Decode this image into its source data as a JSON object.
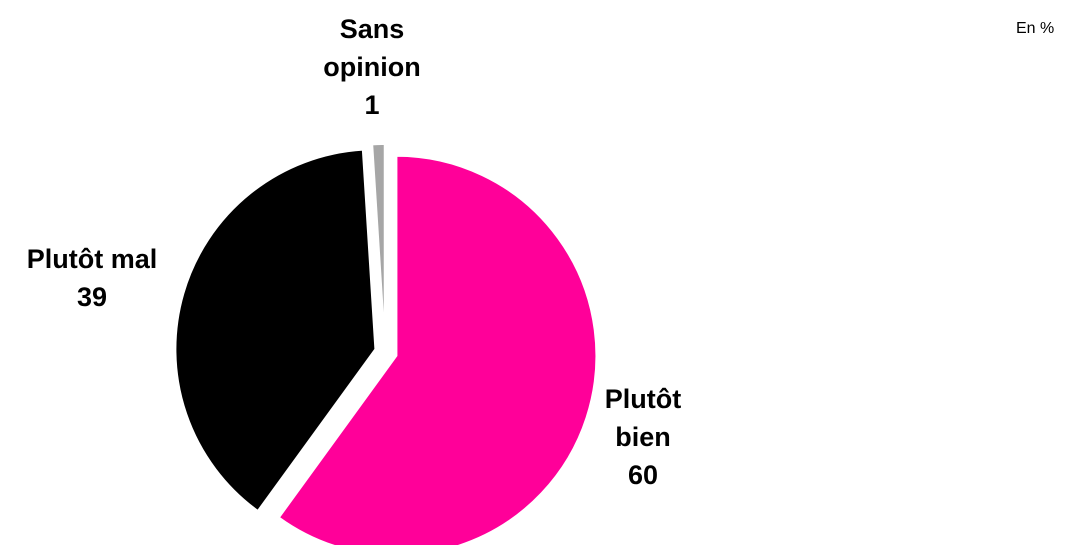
{
  "unit_note": "En %",
  "chart_data": {
    "type": "pie",
    "title": "",
    "slices": [
      {
        "label_lines": [
          "Plutôt",
          "bien"
        ],
        "value": 60,
        "color": "#ff0099"
      },
      {
        "label_lines": [
          "Plutôt mal"
        ],
        "value": 39,
        "color": "#000000"
      },
      {
        "label_lines": [
          "Sans",
          "opinion"
        ],
        "value": 1,
        "color": "#a6a6a6"
      }
    ],
    "start_angle_deg": 0,
    "direction": "clockwise",
    "exploded": true
  }
}
